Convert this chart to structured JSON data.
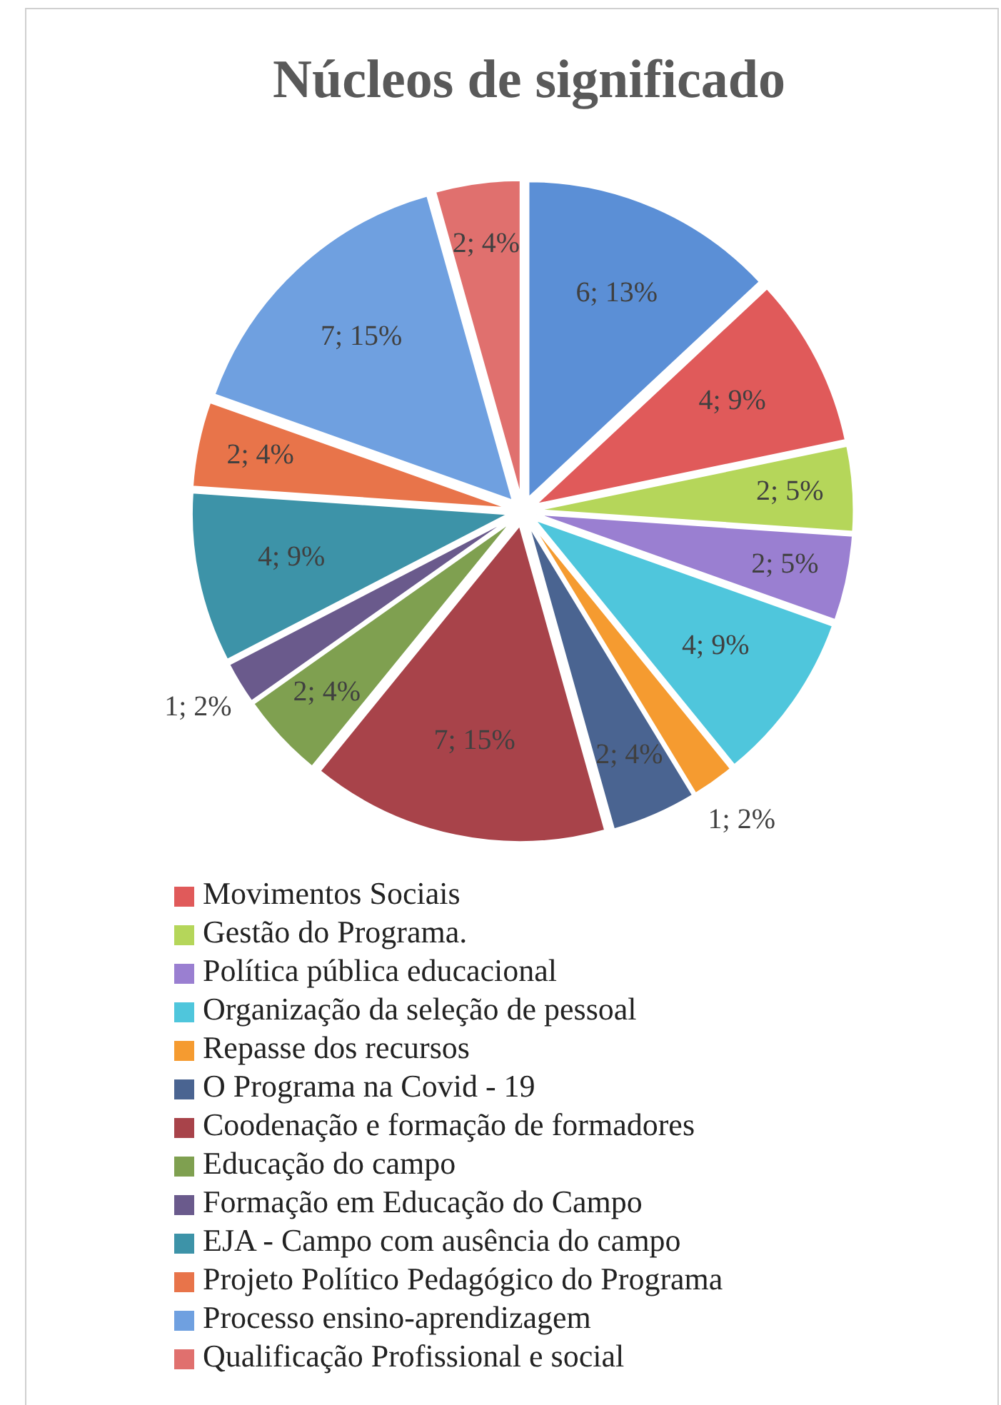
{
  "chart_data": {
    "type": "pie",
    "title": "Núcleos de significado",
    "categories": [
      null,
      "Movimentos Sociais",
      "Gestão do Programa.",
      "Política pública educacional",
      "Organização da seleção de pessoal",
      "Repasse dos recursos",
      "O Programa na Covid - 19",
      "Coodenação e formação de formadores",
      "Educação do campo",
      "Formação em Educação do Campo",
      "EJA - Campo com ausência do campo",
      "Projeto Político Pedagógico do Programa",
      "Processo ensino-aprendizagem",
      "Qualificação Profissional e social"
    ],
    "values": [
      6,
      4,
      2,
      2,
      4,
      1,
      2,
      7,
      2,
      1,
      4,
      2,
      7,
      2
    ],
    "value_labels": [
      "6; 13%",
      "4; 9%",
      "2; 5%",
      "2; 5%",
      "4; 9%",
      "1; 2%",
      "2; 4%",
      "7; 15%",
      "2; 4%",
      "1; 2%",
      "4; 9%",
      "2; 4%",
      "7; 15%",
      "2; 4%"
    ],
    "colors": [
      "#5b8fd6",
      "#e05a5a",
      "#b5d65a",
      "#9a7fd1",
      "#4fc6dc",
      "#f59b30",
      "#4a6491",
      "#a8434a",
      "#7fa050",
      "#6a5a8c",
      "#3d93a8",
      "#e8744a",
      "#6fa0e0",
      "#e0706e"
    ],
    "legend": "bottom"
  }
}
